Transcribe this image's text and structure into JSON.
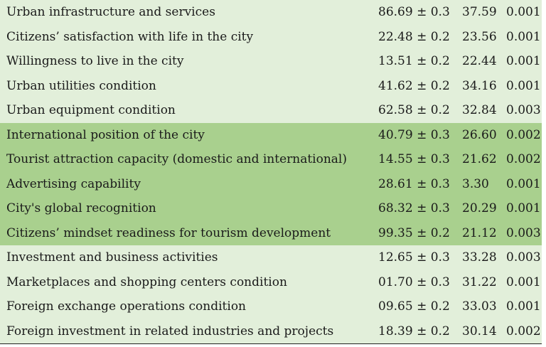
{
  "rows": [
    {
      "group": "light",
      "name": "Urban infrastructure and services",
      "mean": "86.69 ± 0.3",
      "value": "37.59",
      "p": "0.001"
    },
    {
      "group": "light",
      "name": "Citizens’ satisfaction with life in the city",
      "mean": "22.48 ± 0.2",
      "value": "23.56",
      "p": "0.001"
    },
    {
      "group": "light",
      "name": "Willingness to live in the city",
      "mean": "13.51 ± 0.2",
      "value": "22.44",
      "p": "0.001"
    },
    {
      "group": "light",
      "name": "Urban utilities condition",
      "mean": "41.62 ± 0.2",
      "value": "34.16",
      "p": "0.001"
    },
    {
      "group": "light",
      "name": "Urban equipment condition",
      "mean": "62.58 ± 0.2",
      "value": "32.84",
      "p": "0.003"
    },
    {
      "group": "dark",
      "name": "International position of the city",
      "mean": "40.79 ± 0.3",
      "value": "26.60",
      "p": "0.002"
    },
    {
      "group": "dark",
      "name": "Tourist attraction capacity (domestic and international)",
      "mean": "14.55 ± 0.3",
      "value": "21.62",
      "p": "0.002"
    },
    {
      "group": "dark",
      "name": "Advertising capability",
      "mean": "28.61 ± 0.3",
      "value": "3.30",
      "p": "0.001"
    },
    {
      "group": "dark",
      "name": "City's global recognition",
      "mean": "68.32 ± 0.3",
      "value": "20.29",
      "p": "0.001"
    },
    {
      "group": "dark",
      "name": "Citizens’ mindset readiness for tourism development",
      "mean": "99.35 ± 0.2",
      "value": "21.12",
      "p": "0.003"
    },
    {
      "group": "light",
      "name": "Investment and business activities",
      "mean": "12.65 ± 0.3",
      "value": "33.28",
      "p": "0.003"
    },
    {
      "group": "light",
      "name": "Marketplaces and shopping centers condition",
      "mean": "01.70 ± 0.3",
      "value": "31.22",
      "p": "0.001"
    },
    {
      "group": "light",
      "name": "Foreign exchange operations condition",
      "mean": "09.65 ± 0.2",
      "value": "33.03",
      "p": "0.001"
    },
    {
      "group": "light",
      "name": "Foreign investment in related industries and projects",
      "mean": "18.39 ± 0.2",
      "value": "30.14",
      "p": "0.002"
    }
  ],
  "colors": {
    "light_band": "#e2efda",
    "dark_band": "#a9d08e"
  }
}
